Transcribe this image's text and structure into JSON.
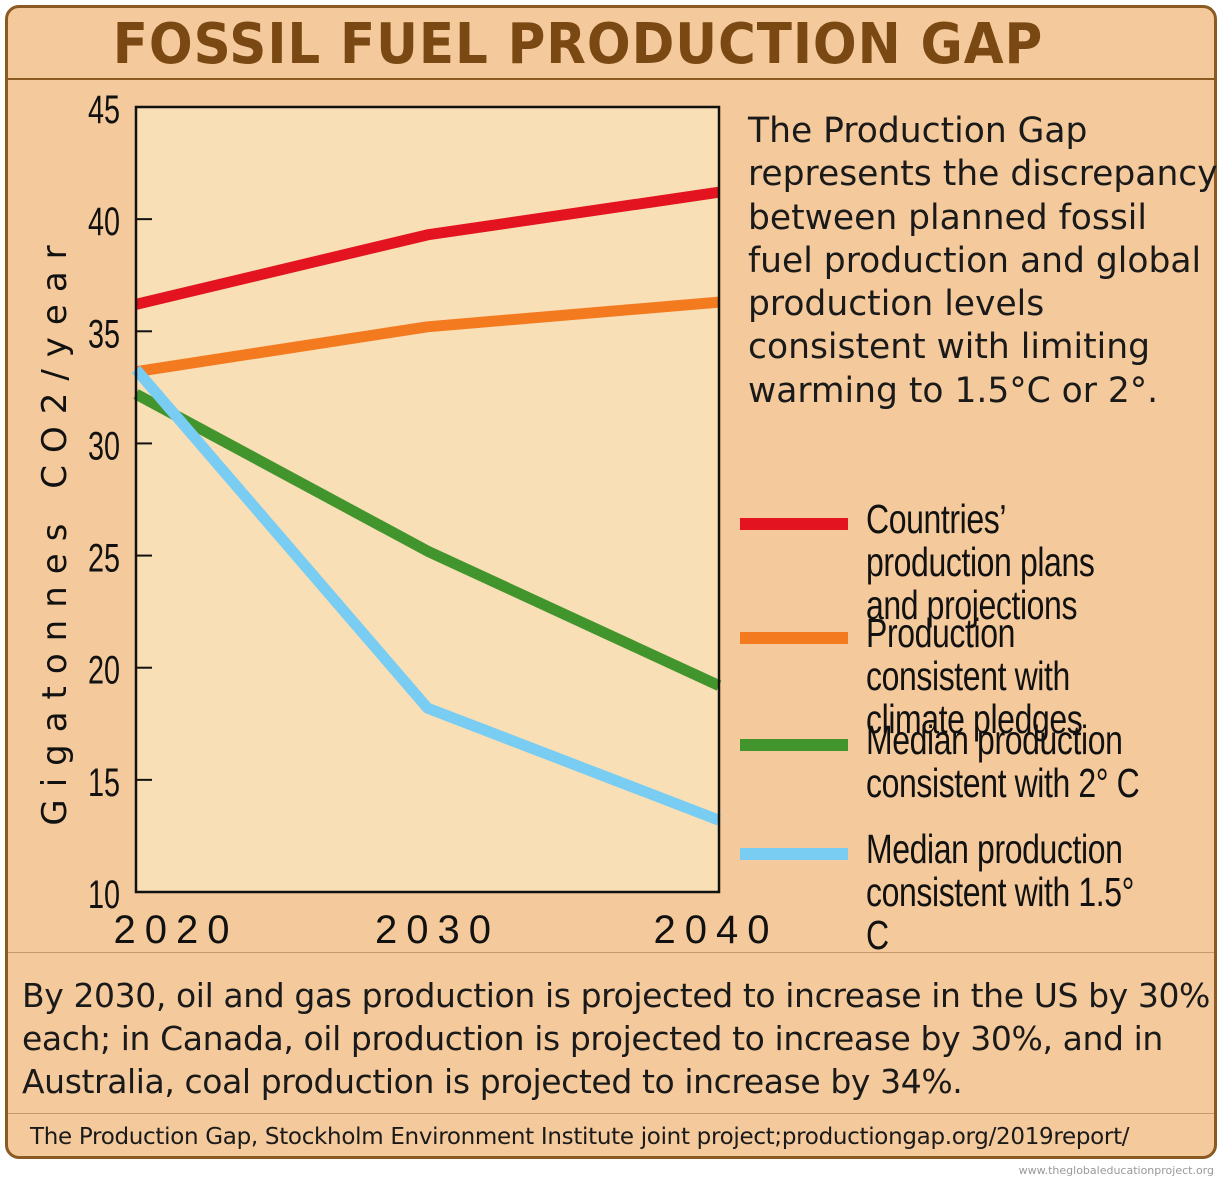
{
  "title": "FOSSIL FUEL PRODUCTION GAP",
  "description": "The Production Gap represents the discrepancy between planned fossil fuel production and global production levels consistent with limiting warming to 1.5°C or 2°.",
  "note": "By 2030, oil and gas production is projected to increase in the US by 30% each; in Canada, oil production is projected to increase by 30%, and in Australia, coal production is projected to increase by 34%.",
  "source": "The Production Gap, Stockholm Environment Institute joint project;productiongap.org/2019report/",
  "watermark": "www.theglobaleducationproject.org",
  "colors": {
    "plot_background": "#f8dfb6",
    "panel_background": "#f4c99b",
    "frame": "#8a5a22",
    "title": "#7a4812"
  },
  "chart_data": {
    "type": "line",
    "ylabel": "Gigatonnes CO2/year",
    "xlabel": "",
    "x": [
      2020,
      2030,
      2040
    ],
    "xticks": [
      "2020",
      "2030",
      "2040"
    ],
    "ylim": [
      10,
      45
    ],
    "yticks": [
      "10",
      "15",
      "20",
      "25",
      "30",
      "35",
      "40",
      "45"
    ],
    "grid": false,
    "legend_position": "right",
    "series": [
      {
        "name": "Countries’ production plans and projections",
        "color": "#e3141f",
        "values": [
          36.2,
          39.3,
          41.2
        ]
      },
      {
        "name": "Production consistent with climate pledges",
        "color": "#f47a20",
        "values": [
          33.2,
          35.2,
          36.3
        ]
      },
      {
        "name": "Median production consistent with 2° C",
        "color": "#42952c",
        "values": [
          32.2,
          25.2,
          19.2
        ]
      },
      {
        "name": "Median production consistent with 1.5° C",
        "color": "#79ccf2",
        "values": [
          33.3,
          18.2,
          13.2
        ]
      }
    ]
  }
}
